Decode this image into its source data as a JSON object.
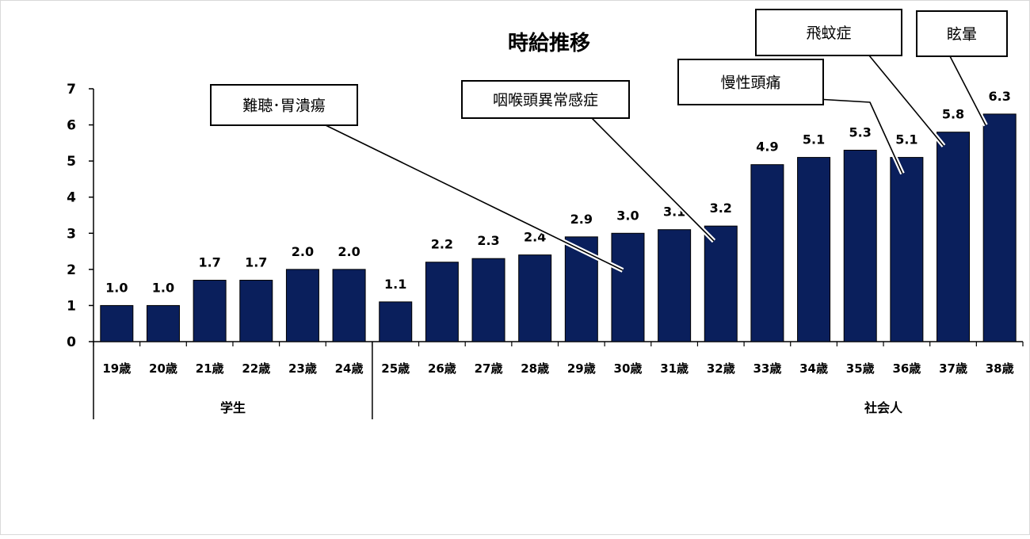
{
  "colors": {
    "bar": "#0a1f5c",
    "axis": "#000000"
  },
  "chart_data": {
    "type": "bar",
    "title": "時給推移",
    "categories": [
      "19歳",
      "20歳",
      "21歳",
      "22歳",
      "23歳",
      "24歳",
      "25歳",
      "26歳",
      "27歳",
      "28歳",
      "29歳",
      "30歳",
      "31歳",
      "32歳",
      "33歳",
      "34歳",
      "35歳",
      "36歳",
      "37歳",
      "38歳"
    ],
    "values": [
      1.0,
      1.0,
      1.7,
      1.7,
      2.0,
      2.0,
      1.1,
      2.2,
      2.3,
      2.4,
      2.9,
      3.0,
      3.1,
      3.2,
      4.9,
      5.1,
      5.3,
      5.1,
      5.8,
      6.3
    ],
    "value_labels": [
      "1.0",
      "1.0",
      "1.7",
      "1.7",
      "2.0",
      "2.0",
      "1.1",
      "2.2",
      "2.3",
      "2.4",
      "2.9",
      "3.0",
      "3.1",
      "3.2",
      "4.9",
      "5.1",
      "5.3",
      "5.1",
      "5.8",
      "6.3"
    ],
    "ylim": [
      0,
      7
    ],
    "yticks": [
      "0",
      "1",
      "2",
      "3",
      "4",
      "5",
      "6",
      "7"
    ],
    "xlabel": "",
    "ylabel": "",
    "grid": false,
    "legend": "none",
    "groups": [
      {
        "label": "学生",
        "from": 0,
        "to": 5
      },
      {
        "label": "社会人",
        "from": 6,
        "to": 19
      }
    ],
    "annotations": [
      {
        "text": "難聴･胃潰瘍",
        "target": 11
      },
      {
        "text": "咽喉頭異常感症",
        "target": 13
      },
      {
        "text": "慢性頭痛",
        "target": 17
      },
      {
        "text": "飛蚊症",
        "target": 18
      },
      {
        "text": "眩暈",
        "target": 19
      }
    ]
  }
}
